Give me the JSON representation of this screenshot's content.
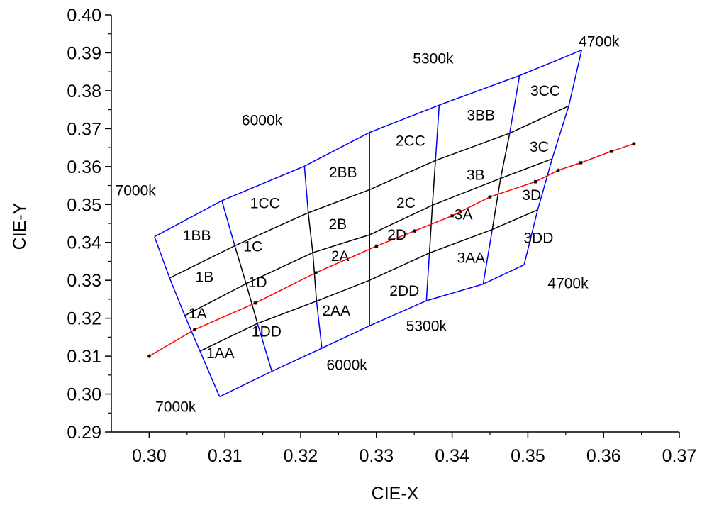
{
  "chart_data": {
    "type": "scatter",
    "xlabel": "CIE-X",
    "ylabel": "CIE-Y",
    "xlim": [
      0.295,
      0.37
    ],
    "ylim": [
      0.29,
      0.4
    ],
    "x_ticks": [
      {
        "v": 0.3,
        "label": "0.30"
      },
      {
        "v": 0.31,
        "label": "0.31"
      },
      {
        "v": 0.32,
        "label": "0.32"
      },
      {
        "v": 0.33,
        "label": "0.33"
      },
      {
        "v": 0.34,
        "label": "0.34"
      },
      {
        "v": 0.35,
        "label": "0.35"
      },
      {
        "v": 0.36,
        "label": "0.36"
      },
      {
        "v": 0.37,
        "label": "0.37"
      }
    ],
    "y_ticks": [
      {
        "v": 0.29,
        "label": "0.29"
      },
      {
        "v": 0.3,
        "label": "0.30"
      },
      {
        "v": 0.31,
        "label": "0.31"
      },
      {
        "v": 0.32,
        "label": "0.32"
      },
      {
        "v": 0.33,
        "label": "0.33"
      },
      {
        "v": 0.34,
        "label": "0.34"
      },
      {
        "v": 0.35,
        "label": "0.35"
      },
      {
        "v": 0.36,
        "label": "0.36"
      },
      {
        "v": 0.37,
        "label": "0.37"
      },
      {
        "v": 0.38,
        "label": "0.38"
      },
      {
        "v": 0.39,
        "label": "0.39"
      },
      {
        "v": 0.4,
        "label": "0.40"
      }
    ],
    "colors": {
      "outline": "#0000ff",
      "grid": "#000000",
      "locus": "#ff0000"
    },
    "bin_grid": {
      "cct_lines": [
        [
          [
            0.3093,
            0.2993
          ],
          [
            0.3067,
            0.3113
          ],
          [
            0.3047,
            0.3207
          ],
          [
            0.3027,
            0.3306
          ],
          [
            0.3007,
            0.3415
          ]
        ],
        [
          [
            0.3162,
            0.306
          ],
          [
            0.3143,
            0.3186
          ],
          [
            0.3128,
            0.3291
          ],
          [
            0.3113,
            0.3391
          ],
          [
            0.3096,
            0.351
          ]
        ],
        [
          [
            0.3228,
            0.3121
          ],
          [
            0.3221,
            0.3245
          ],
          [
            0.3216,
            0.3373
          ],
          [
            0.321,
            0.3478
          ],
          [
            0.3205,
            0.3601
          ]
        ],
        [
          [
            0.3291,
            0.318
          ],
          [
            0.3291,
            0.33
          ],
          [
            0.3291,
            0.342
          ],
          [
            0.3291,
            0.3539
          ],
          [
            0.3291,
            0.369
          ]
        ],
        [
          [
            0.3366,
            0.3246
          ],
          [
            0.337,
            0.3372
          ],
          [
            0.3374,
            0.3498
          ],
          [
            0.3378,
            0.3616
          ],
          [
            0.3383,
            0.3762
          ]
        ],
        [
          [
            0.3441,
            0.329
          ],
          [
            0.3453,
            0.3434
          ],
          [
            0.3464,
            0.3569
          ],
          [
            0.3476,
            0.3688
          ],
          [
            0.3489,
            0.384
          ]
        ],
        [
          [
            0.3495,
            0.3341
          ],
          [
            0.3513,
            0.3486
          ],
          [
            0.3532,
            0.362
          ],
          [
            0.3554,
            0.376
          ],
          [
            0.3571,
            0.3907
          ]
        ]
      ],
      "duv_lines": [
        [
          [
            0.3067,
            0.3113
          ],
          [
            0.3143,
            0.3186
          ],
          [
            0.3221,
            0.3245
          ],
          [
            0.3291,
            0.33
          ],
          [
            0.337,
            0.3372
          ],
          [
            0.3453,
            0.3434
          ],
          [
            0.3513,
            0.3486
          ]
        ],
        [
          [
            0.3047,
            0.3207
          ],
          [
            0.3128,
            0.3291
          ],
          [
            0.3216,
            0.3373
          ],
          [
            0.3291,
            0.342
          ],
          [
            0.3374,
            0.3498
          ],
          [
            0.3464,
            0.3569
          ],
          [
            0.3532,
            0.362
          ]
        ],
        [
          [
            0.3027,
            0.3306
          ],
          [
            0.3113,
            0.3391
          ],
          [
            0.321,
            0.3478
          ],
          [
            0.3291,
            0.3539
          ],
          [
            0.3378,
            0.3616
          ],
          [
            0.3476,
            0.3688
          ],
          [
            0.3554,
            0.376
          ]
        ]
      ]
    },
    "locus": [
      [
        0.3,
        0.31
      ],
      [
        0.306,
        0.317
      ],
      [
        0.314,
        0.324
      ],
      [
        0.322,
        0.332
      ],
      [
        0.33,
        0.339
      ],
      [
        0.335,
        0.343
      ],
      [
        0.34,
        0.347
      ],
      [
        0.345,
        0.352
      ],
      [
        0.351,
        0.356
      ],
      [
        0.354,
        0.359
      ],
      [
        0.357,
        0.361
      ],
      [
        0.361,
        0.364
      ],
      [
        0.364,
        0.366
      ]
    ],
    "region_labels": [
      {
        "text": "1BB",
        "x": 0.3063,
        "y": 0.3418
      },
      {
        "text": "1CC",
        "x": 0.3153,
        "y": 0.3503
      },
      {
        "text": "2BB",
        "x": 0.3256,
        "y": 0.3585
      },
      {
        "text": "2CC",
        "x": 0.3345,
        "y": 0.3668
      },
      {
        "text": "3BB",
        "x": 0.3438,
        "y": 0.3735
      },
      {
        "text": "3CC",
        "x": 0.3523,
        "y": 0.38
      },
      {
        "text": "1C",
        "x": 0.3137,
        "y": 0.3389
      },
      {
        "text": "2B",
        "x": 0.3249,
        "y": 0.3448
      },
      {
        "text": "2C",
        "x": 0.3339,
        "y": 0.3504
      },
      {
        "text": "3B",
        "x": 0.3431,
        "y": 0.3578
      },
      {
        "text": "3C",
        "x": 0.3515,
        "y": 0.3652
      },
      {
        "text": "1B",
        "x": 0.3073,
        "y": 0.3309
      },
      {
        "text": "1D",
        "x": 0.3143,
        "y": 0.3295
      },
      {
        "text": "2A",
        "x": 0.3252,
        "y": 0.3364
      },
      {
        "text": "2D",
        "x": 0.3327,
        "y": 0.342
      },
      {
        "text": "3A",
        "x": 0.3415,
        "y": 0.3473
      },
      {
        "text": "3D",
        "x": 0.3505,
        "y": 0.3525
      },
      {
        "text": "1A",
        "x": 0.3064,
        "y": 0.3212
      },
      {
        "text": "2AA",
        "x": 0.3247,
        "y": 0.322
      },
      {
        "text": "2DD",
        "x": 0.3337,
        "y": 0.3272
      },
      {
        "text": "3AA",
        "x": 0.3425,
        "y": 0.3359
      },
      {
        "text": "3DD",
        "x": 0.3514,
        "y": 0.3412
      },
      {
        "text": "1DD",
        "x": 0.3155,
        "y": 0.3165
      },
      {
        "text": "1AA",
        "x": 0.3094,
        "y": 0.3108
      }
    ],
    "cct_labels": [
      {
        "text": "4700k",
        "x": 0.3594,
        "y": 0.393
      },
      {
        "text": "5300k",
        "x": 0.3375,
        "y": 0.3885
      },
      {
        "text": "6000k",
        "x": 0.3149,
        "y": 0.3722
      },
      {
        "text": "7000k",
        "x": 0.2982,
        "y": 0.3537
      },
      {
        "text": "4700k",
        "x": 0.3553,
        "y": 0.3292
      },
      {
        "text": "5300k",
        "x": 0.3366,
        "y": 0.318
      },
      {
        "text": "6000k",
        "x": 0.3261,
        "y": 0.3077
      },
      {
        "text": "7000k",
        "x": 0.3035,
        "y": 0.2966
      }
    ]
  }
}
